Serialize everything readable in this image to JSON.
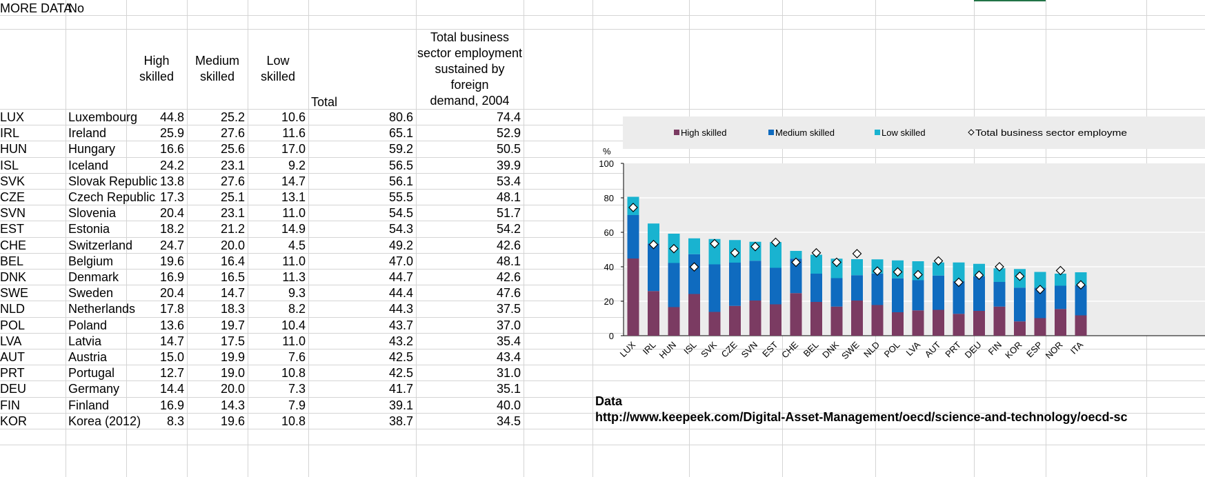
{
  "more_data": {
    "label": "MORE DATA",
    "value": "No"
  },
  "headers": {
    "high": [
      "High",
      "skilled"
    ],
    "medium": [
      "Medium",
      "skilled"
    ],
    "low": [
      "Low skilled"
    ],
    "total": "Total",
    "foreign": [
      "Total business",
      "sector employment",
      "sustained by foreign",
      "demand, 2004"
    ]
  },
  "rows": [
    {
      "code": "LUX",
      "country": "Luxembourg",
      "high": "44.8",
      "medium": "25.2",
      "low": "10.6",
      "total": "80.6",
      "foreign": "74.4"
    },
    {
      "code": "IRL",
      "country": "Ireland",
      "high": "25.9",
      "medium": "27.6",
      "low": "11.6",
      "total": "65.1",
      "foreign": "52.9"
    },
    {
      "code": "HUN",
      "country": "Hungary",
      "high": "16.6",
      "medium": "25.6",
      "low": "17.0",
      "total": "59.2",
      "foreign": "50.5"
    },
    {
      "code": "ISL",
      "country": "Iceland",
      "high": "24.2",
      "medium": "23.1",
      "low": "9.2",
      "total": "56.5",
      "foreign": "39.9"
    },
    {
      "code": "SVK",
      "country": "Slovak Republic",
      "high": "13.8",
      "medium": "27.6",
      "low": "14.7",
      "total": "56.1",
      "foreign": "53.4"
    },
    {
      "code": "CZE",
      "country": "Czech Republic",
      "high": "17.3",
      "medium": "25.1",
      "low": "13.1",
      "total": "55.5",
      "foreign": "48.1"
    },
    {
      "code": "SVN",
      "country": "Slovenia",
      "high": "20.4",
      "medium": "23.1",
      "low": "11.0",
      "total": "54.5",
      "foreign": "51.7"
    },
    {
      "code": "EST",
      "country": "Estonia",
      "high": "18.2",
      "medium": "21.2",
      "low": "14.9",
      "total": "54.3",
      "foreign": "54.2"
    },
    {
      "code": "CHE",
      "country": "Switzerland",
      "high": "24.7",
      "medium": "20.0",
      "low": "4.5",
      "total": "49.2",
      "foreign": "42.6"
    },
    {
      "code": "BEL",
      "country": "Belgium",
      "high": "19.6",
      "medium": "16.4",
      "low": "11.0",
      "total": "47.0",
      "foreign": "48.1"
    },
    {
      "code": "DNK",
      "country": "Denmark",
      "high": "16.9",
      "medium": "16.5",
      "low": "11.3",
      "total": "44.7",
      "foreign": "42.6"
    },
    {
      "code": "SWE",
      "country": "Sweden",
      "high": "20.4",
      "medium": "14.7",
      "low": "9.3",
      "total": "44.4",
      "foreign": "47.6"
    },
    {
      "code": "NLD",
      "country": "Netherlands",
      "high": "17.8",
      "medium": "18.3",
      "low": "8.2",
      "total": "44.3",
      "foreign": "37.5"
    },
    {
      "code": "POL",
      "country": "Poland",
      "high": "13.6",
      "medium": "19.7",
      "low": "10.4",
      "total": "43.7",
      "foreign": "37.0"
    },
    {
      "code": "LVA",
      "country": "Latvia",
      "high": "14.7",
      "medium": "17.5",
      "low": "11.0",
      "total": "43.2",
      "foreign": "35.4"
    },
    {
      "code": "AUT",
      "country": "Austria",
      "high": "15.0",
      "medium": "19.9",
      "low": "7.6",
      "total": "42.5",
      "foreign": "43.4"
    },
    {
      "code": "PRT",
      "country": "Portugal",
      "high": "12.7",
      "medium": "19.0",
      "low": "10.8",
      "total": "42.5",
      "foreign": "31.0"
    },
    {
      "code": "DEU",
      "country": "Germany",
      "high": "14.4",
      "medium": "20.0",
      "low": "7.3",
      "total": "41.7",
      "foreign": "35.1"
    },
    {
      "code": "FIN",
      "country": "Finland",
      "high": "16.9",
      "medium": "14.3",
      "low": "7.9",
      "total": "39.1",
      "foreign": "40.0"
    },
    {
      "code": "KOR",
      "country": "Korea (2012)",
      "high": "8.3",
      "medium": "19.6",
      "low": "10.8",
      "total": "38.7",
      "foreign": "34.5"
    }
  ],
  "side": {
    "data_label": "Data",
    "url": "http://www.keepeek.com/Digital-Asset-Management/oecd/science-and-technology/oecd-sc"
  },
  "chart_data": {
    "type": "bar",
    "stacked": true,
    "ylabel": "%",
    "ylim": [
      0,
      100
    ],
    "yticks": [
      0,
      20,
      40,
      60,
      80,
      100
    ],
    "grid": true,
    "legend_position": "top",
    "categories": [
      "LUX",
      "IRL",
      "HUN",
      "ISL",
      "SVK",
      "CZE",
      "SVN",
      "EST",
      "CHE",
      "BEL",
      "DNK",
      "SWE",
      "NLD",
      "POL",
      "LVA",
      "AUT",
      "PRT",
      "DEU",
      "FIN",
      "KOR",
      "ESP",
      "NOR",
      "ITA"
    ],
    "series": [
      {
        "name": "High skilled",
        "type": "bar",
        "color": "#7b3b62",
        "values": [
          44.8,
          25.9,
          16.6,
          24.2,
          13.8,
          17.3,
          20.4,
          18.2,
          24.7,
          19.6,
          16.9,
          20.4,
          17.8,
          13.6,
          14.7,
          15.0,
          12.7,
          14.4,
          16.9,
          8.3,
          10.2,
          15.5,
          11.8
        ]
      },
      {
        "name": "Medium skilled",
        "type": "bar",
        "color": "#0f6bbf",
        "values": [
          25.2,
          27.6,
          25.6,
          23.1,
          27.6,
          25.1,
          23.1,
          21.2,
          20.0,
          16.4,
          16.5,
          14.7,
          18.3,
          19.7,
          17.5,
          19.9,
          19.0,
          20.0,
          14.3,
          19.6,
          17.6,
          13.5,
          17.5
        ]
      },
      {
        "name": "Low skilled",
        "type": "bar",
        "color": "#19b3d0",
        "values": [
          10.6,
          11.6,
          17.0,
          9.2,
          14.7,
          13.1,
          11.0,
          14.9,
          4.5,
          11.0,
          11.3,
          9.3,
          8.2,
          10.4,
          11.0,
          7.6,
          10.8,
          7.3,
          7.9,
          10.8,
          9.2,
          7.0,
          7.5
        ]
      },
      {
        "name": "Total business sector employme",
        "type": "marker",
        "color": "#ffffff",
        "values": [
          74.4,
          52.9,
          50.5,
          39.9,
          53.4,
          48.1,
          51.7,
          54.2,
          42.6,
          48.1,
          42.6,
          47.6,
          37.5,
          37.0,
          35.4,
          43.4,
          31.0,
          35.1,
          40.0,
          34.5,
          26.8,
          37.8,
          29.5
        ]
      }
    ]
  }
}
